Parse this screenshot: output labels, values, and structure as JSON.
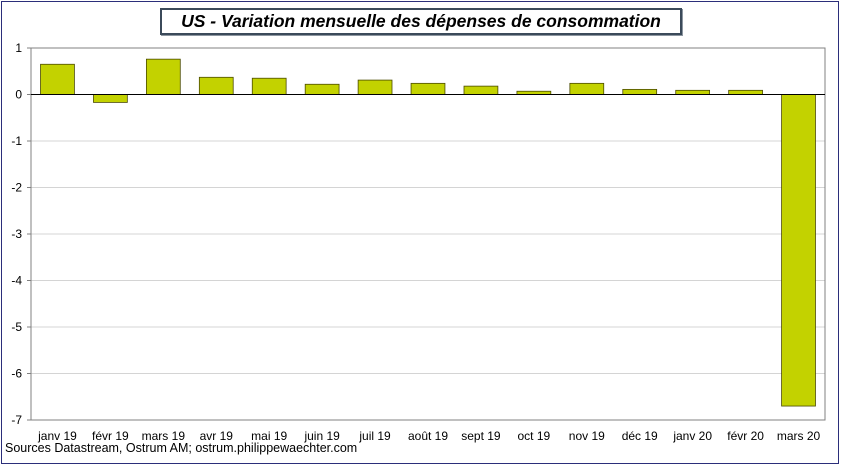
{
  "chart_data": {
    "type": "bar",
    "title": "US - Variation mensuelle des dépenses de consommation",
    "categories": [
      "janv 19",
      "févr 19",
      "mars 19",
      "avr 19",
      "mai 19",
      "juin 19",
      "juil 19",
      "août 19",
      "sept 19",
      "oct 19",
      "nov 19",
      "déc 19",
      "janv 20",
      "févr 20",
      "mars 20"
    ],
    "values": [
      0.65,
      -0.17,
      0.76,
      0.37,
      0.35,
      0.22,
      0.31,
      0.24,
      0.18,
      0.07,
      0.24,
      0.11,
      0.09,
      0.09,
      -6.7
    ],
    "ylim": [
      -7,
      1
    ],
    "yticks": [
      "1",
      "0",
      "-1",
      "-2",
      "-3",
      "-4",
      "-5",
      "-6",
      "-7"
    ],
    "bar_color": "#c3d200",
    "bar_edge_color": "#4a4a00",
    "grid": true,
    "xlabel": "",
    "ylabel": ""
  },
  "source": "Sources Datastream, Ostrum AM; ostrum.philippewaechter.com"
}
